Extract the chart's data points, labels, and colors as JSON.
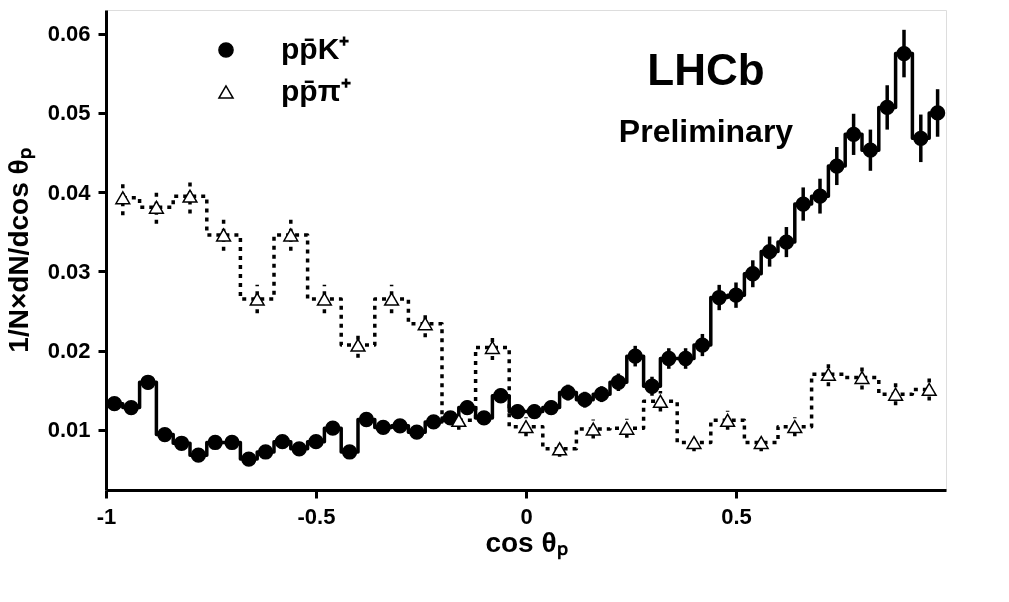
{
  "chart_data": {
    "type": "step",
    "xlabel": "cos θₚ",
    "ylabel": "1/N×dN/dcos θₚ",
    "annotations": [
      "LHCb",
      "Preliminary"
    ],
    "xlim": [
      -1,
      1
    ],
    "xticks": [
      -1,
      -0.5,
      0,
      0.5
    ],
    "ylim": [
      0.0024,
      0.063
    ],
    "yticks": [
      0.01,
      0.02,
      0.03,
      0.04,
      0.05,
      0.06
    ],
    "grid": false,
    "legend": "top left",
    "series": [
      {
        "name": "pp̄K⁺",
        "color": "#000000",
        "marker": "circle",
        "line_style": "solid",
        "x": [
          -0.98,
          -0.94,
          -0.9,
          -0.86,
          -0.82,
          -0.78,
          -0.74,
          -0.7,
          -0.66,
          -0.62,
          -0.58,
          -0.54,
          -0.5,
          -0.46,
          -0.42,
          -0.38,
          -0.34,
          -0.3,
          -0.26,
          -0.22,
          -0.18,
          -0.14,
          -0.1,
          -0.06,
          -0.02,
          0.02,
          0.06,
          0.1,
          0.14,
          0.18,
          0.22,
          0.26,
          0.3,
          0.34,
          0.38,
          0.42,
          0.46,
          0.5,
          0.54,
          0.58,
          0.62,
          0.66,
          0.7,
          0.74,
          0.78,
          0.82,
          0.86,
          0.9,
          0.94,
          0.98
        ],
        "values": [
          0.0133,
          0.0128,
          0.016,
          0.0094,
          0.0083,
          0.0068,
          0.0084,
          0.0084,
          0.0063,
          0.0072,
          0.0085,
          0.0076,
          0.0085,
          0.0102,
          0.0072,
          0.0113,
          0.0103,
          0.0105,
          0.0097,
          0.011,
          0.0115,
          0.0128,
          0.0115,
          0.0143,
          0.0123,
          0.0123,
          0.0128,
          0.0147,
          0.0138,
          0.0145,
          0.016,
          0.0193,
          0.0155,
          0.019,
          0.019,
          0.0207,
          0.0267,
          0.027,
          0.0297,
          0.0325,
          0.0337,
          0.0385,
          0.0395,
          0.0433,
          0.0473,
          0.0453,
          0.0507,
          0.0575,
          0.0468,
          0.05
        ],
        "errors": [
          0.0008,
          0.0008,
          0.0009,
          0.0007,
          0.0007,
          0.0006,
          0.0007,
          0.0007,
          0.0006,
          0.0006,
          0.0007,
          0.0006,
          0.0007,
          0.0008,
          0.0006,
          0.0008,
          0.0007,
          0.0007,
          0.0007,
          0.0008,
          0.0008,
          0.0009,
          0.0008,
          0.0009,
          0.0009,
          0.0009,
          0.0009,
          0.001,
          0.001,
          0.001,
          0.0011,
          0.0013,
          0.0012,
          0.0013,
          0.0013,
          0.0014,
          0.0016,
          0.0016,
          0.0017,
          0.0019,
          0.0019,
          0.0021,
          0.0022,
          0.0024,
          0.0026,
          0.0026,
          0.0028,
          0.003,
          0.003,
          0.003
        ]
      },
      {
        "name": "pp̄π⁺",
        "color": "#000000",
        "marker": "triangle",
        "line_style": "dotted",
        "x": [
          -0.96,
          -0.88,
          -0.8,
          -0.72,
          -0.64,
          -0.56,
          -0.48,
          -0.4,
          -0.32,
          -0.24,
          -0.16,
          -0.08,
          0.0,
          0.08,
          0.16,
          0.24,
          0.32,
          0.4,
          0.48,
          0.56,
          0.64,
          0.72,
          0.8,
          0.88,
          0.96
        ],
        "values": [
          0.0393,
          0.0381,
          0.0395,
          0.0346,
          0.0265,
          0.0346,
          0.0265,
          0.0207,
          0.0265,
          0.0234,
          0.0112,
          0.0204,
          0.0104,
          0.0076,
          0.0101,
          0.0102,
          0.0136,
          0.0084,
          0.0112,
          0.0084,
          0.0104,
          0.017,
          0.0166,
          0.0145,
          0.0151
        ],
        "errors": [
          0.0022,
          0.0021,
          0.0022,
          0.002,
          0.0018,
          0.002,
          0.0018,
          0.0016,
          0.0018,
          0.0017,
          0.0012,
          0.0016,
          0.0012,
          0.001,
          0.0012,
          0.0012,
          0.0013,
          0.0011,
          0.0012,
          0.0011,
          0.0012,
          0.0015,
          0.0015,
          0.0014,
          0.0014
        ]
      }
    ]
  }
}
